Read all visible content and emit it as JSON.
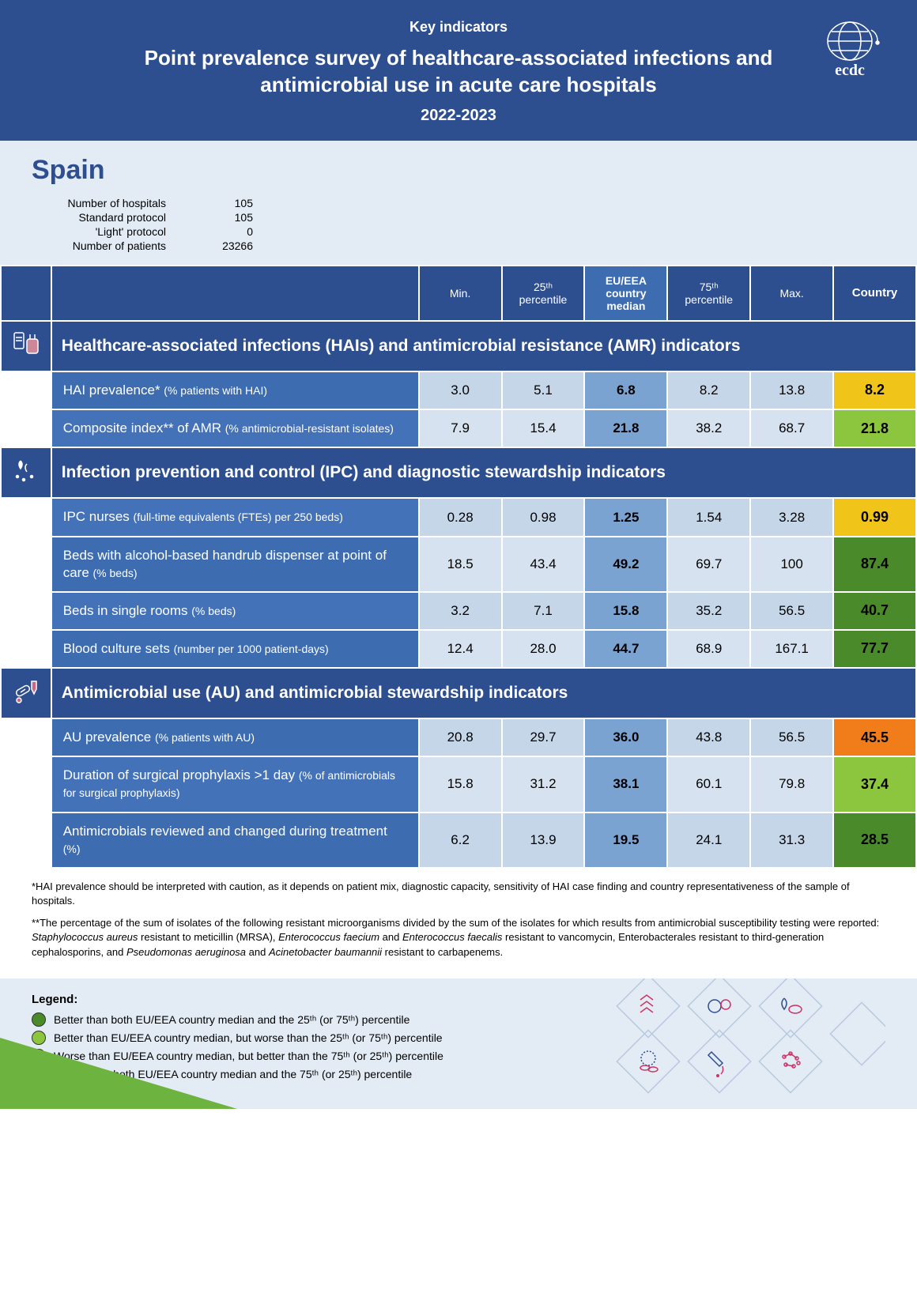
{
  "header": {
    "key": "Key indicators",
    "title": "Point prevalence survey of healthcare-associated infections and antimicrobial use in acute care hospitals",
    "years": "2022-2023",
    "logo_text": "ecdc"
  },
  "country": {
    "name": "Spain",
    "stats": [
      {
        "label": "Number of hospitals",
        "value": "105"
      },
      {
        "label": "Standard protocol",
        "value": "105"
      },
      {
        "label": "'Light' protocol",
        "value": "0"
      },
      {
        "label": "Number of patients",
        "value": "23266"
      }
    ]
  },
  "columns": {
    "min": "Min.",
    "p25": "25ᵗʰ percentile",
    "median": "EU/EEA country median",
    "p75": "75ᵗʰ percentile",
    "max": "Max.",
    "country": "Country"
  },
  "status_colors": {
    "dark_green": "#4a8a2a",
    "light_green": "#8cc63f",
    "yellow": "#f0c419",
    "orange": "#f07d19"
  },
  "sections": [
    {
      "title": "Healthcare-associated infections (HAIs) and antimicrobial resistance (AMR) indicators",
      "icon": "hai",
      "rows": [
        {
          "label": "HAI prevalence*",
          "sub": "(% patients with HAI)",
          "min": "3.0",
          "p25": "5.1",
          "median": "6.8",
          "p75": "8.2",
          "max": "13.8",
          "country": "8.2",
          "status": "yellow"
        },
        {
          "label": "Composite index** of AMR",
          "sub": "(% antimicrobial-resistant isolates)",
          "min": "7.9",
          "p25": "15.4",
          "median": "21.8",
          "p75": "38.2",
          "max": "68.7",
          "country": "21.8",
          "status": "light_green"
        }
      ]
    },
    {
      "title": "Infection prevention and control (IPC) and diagnostic stewardship indicators",
      "icon": "ipc",
      "rows": [
        {
          "label": "IPC nurses",
          "sub": "(full-time equivalents (FTEs) per 250 beds)",
          "min": "0.28",
          "p25": "0.98",
          "median": "1.25",
          "p75": "1.54",
          "max": "3.28",
          "country": "0.99",
          "status": "yellow"
        },
        {
          "label": "Beds with alcohol-based handrub dispenser at point of care",
          "sub": "(% beds)",
          "min": "18.5",
          "p25": "43.4",
          "median": "49.2",
          "p75": "69.7",
          "max": "100",
          "country": "87.4",
          "status": "dark_green"
        },
        {
          "label": "Beds in single rooms",
          "sub": "(% beds)",
          "min": "3.2",
          "p25": "7.1",
          "median": "15.8",
          "p75": "35.2",
          "max": "56.5",
          "country": "40.7",
          "status": "dark_green"
        },
        {
          "label": "Blood culture sets",
          "sub": "(number per 1000 patient-days)",
          "min": "12.4",
          "p25": "28.0",
          "median": "44.7",
          "p75": "68.9",
          "max": "167.1",
          "country": "77.7",
          "status": "dark_green"
        }
      ]
    },
    {
      "title": "Antimicrobial use (AU) and antimicrobial stewardship indicators",
      "icon": "au",
      "rows": [
        {
          "label": "AU prevalence",
          "sub": "(% patients with AU)",
          "min": "20.8",
          "p25": "29.7",
          "median": "36.0",
          "p75": "43.8",
          "max": "56.5",
          "country": "45.5",
          "status": "orange"
        },
        {
          "label": "Duration of surgical prophylaxis >1 day",
          "sub": "(% of antimicrobials for surgical prophylaxis)",
          "min": "15.8",
          "p25": "31.2",
          "median": "38.1",
          "p75": "60.1",
          "max": "79.8",
          "country": "37.4",
          "status": "light_green"
        },
        {
          "label": "Antimicrobials reviewed and changed during treatment",
          "sub": "(%)",
          "min": "6.2",
          "p25": "13.9",
          "median": "19.5",
          "p75": "24.1",
          "max": "31.3",
          "country": "28.5",
          "status": "dark_green"
        }
      ]
    }
  ],
  "footnotes": {
    "f1": "*HAI prevalence should be interpreted with caution, as it depends on patient mix, diagnostic capacity, sensitivity of HAI case finding and country representativeness of the sample of hospitals.",
    "f2_a": "**The percentage of the sum of isolates of the following resistant microorganisms divided by the sum of the isolates for which results from antimicrobial susceptibility testing were reported: ",
    "f2_b": "Staphylococcus aureus",
    "f2_c": " resistant to meticillin (MRSA), ",
    "f2_d": "Enterococcus faecium",
    "f2_e": " and ",
    "f2_f": "Enterococcus faecalis",
    "f2_g": " resistant to vancomycin, Enterobacterales resistant to third-generation cephalosporins, and ",
    "f2_h": "Pseudomonas aeruginosa",
    "f2_i": " and ",
    "f2_j": "Acinetobacter baumannii",
    "f2_k": " resistant to carbapenems."
  },
  "legend": {
    "title": "Legend:",
    "items": [
      {
        "color": "#4a8a2a",
        "text": "Better than both EU/EEA country median and the 25ᵗʰ (or 75ᵗʰ) percentile"
      },
      {
        "color": "#8cc63f",
        "text": "Better than EU/EEA country median, but worse than the 25ᵗʰ (or 75ᵗʰ) percentile"
      },
      {
        "color": "#f0c419",
        "text": "Worse than EU/EEA country median, but better than the 75ᵗʰ (or 25ᵗʰ) percentile"
      },
      {
        "color": "#f07d19",
        "text": "Worse than both EU/EEA country median and the 75ᵗʰ (or 25ᵗʰ) percentile"
      }
    ]
  }
}
